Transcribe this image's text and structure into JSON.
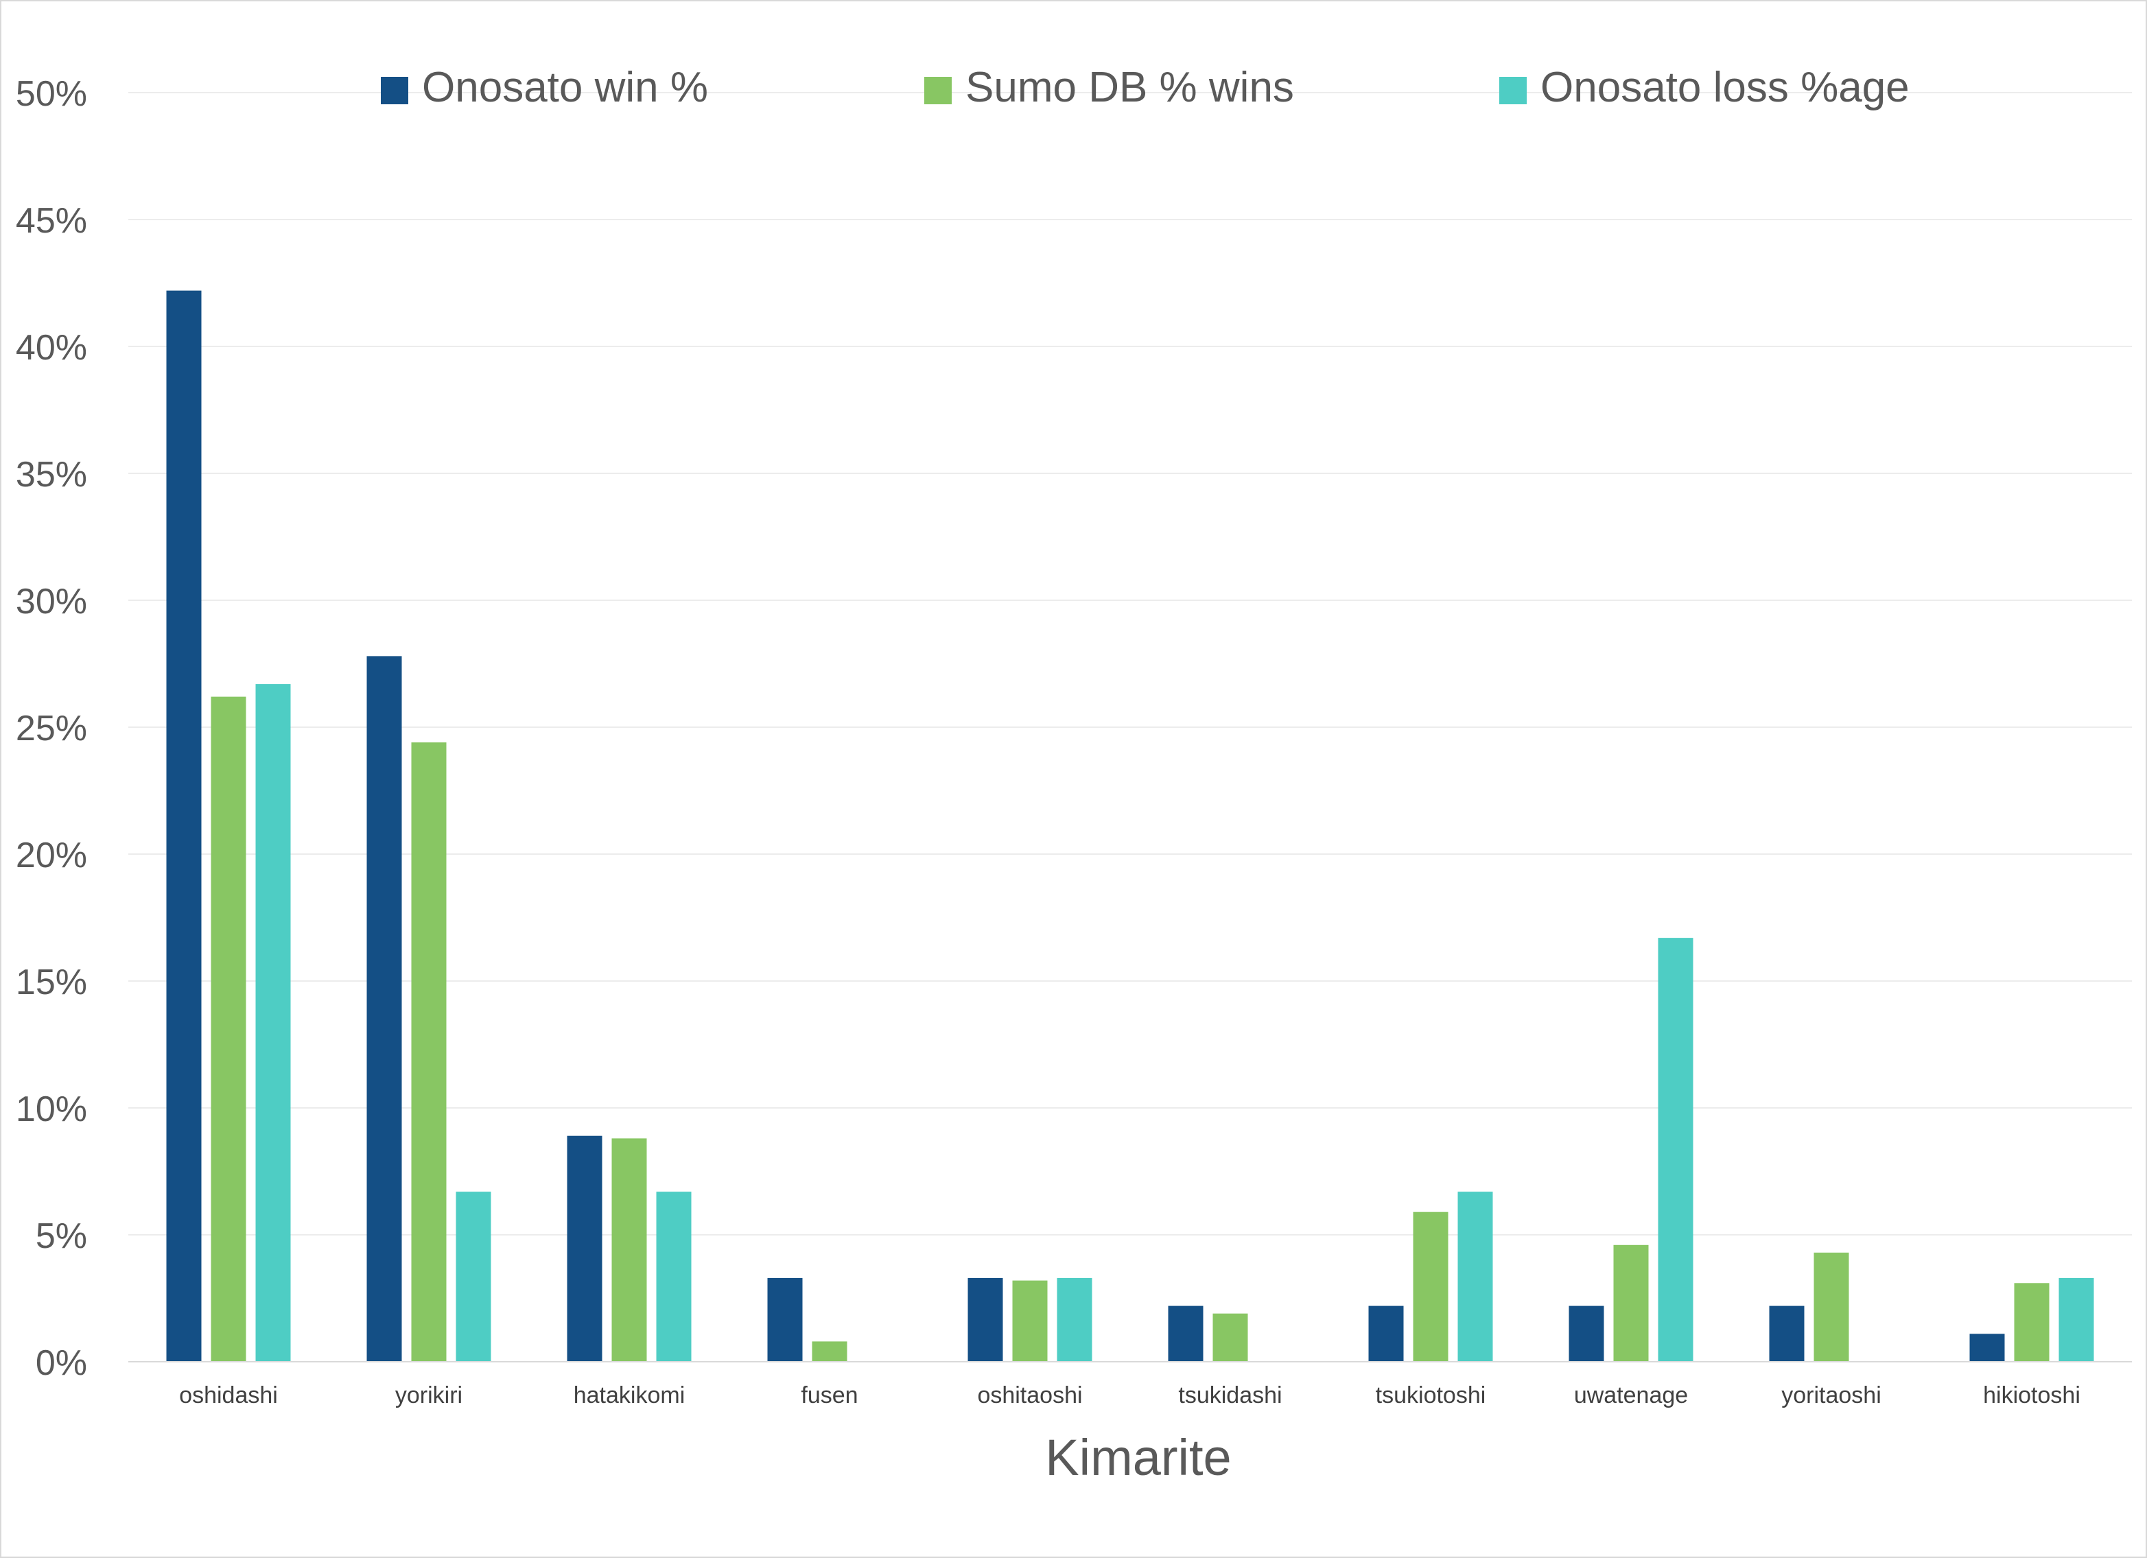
{
  "chart_data": {
    "type": "bar",
    "title": "",
    "xlabel": "Kimarite",
    "ylabel": "",
    "ylim": [
      0,
      50
    ],
    "y_ticks": [
      0,
      5,
      10,
      15,
      20,
      25,
      30,
      35,
      40,
      45,
      50
    ],
    "y_tick_labels": [
      "0%",
      "5%",
      "10%",
      "15%",
      "20%",
      "25%",
      "30%",
      "35%",
      "40%",
      "45%",
      "50%"
    ],
    "value_unit": "%",
    "grid": true,
    "legend_position": "top",
    "categories": [
      "oshidashi",
      "yorikiri",
      "hatakikomi",
      "fusen",
      "oshitaoshi",
      "tsukidashi",
      "tsukiotoshi",
      "uwatenage",
      "yoritaoshi",
      "hikiotoshi"
    ],
    "series": [
      {
        "name": "Onosato win %",
        "color": "#144f85",
        "values": [
          42.2,
          27.8,
          8.9,
          3.3,
          3.3,
          2.2,
          2.2,
          2.2,
          2.2,
          1.1
        ]
      },
      {
        "name": "Sumo DB % wins",
        "color": "#88c663",
        "values": [
          26.2,
          24.4,
          8.8,
          0.8,
          3.2,
          1.9,
          5.9,
          4.6,
          4.3,
          3.1
        ]
      },
      {
        "name": "Onosato loss %age",
        "color": "#4ecdc4",
        "values": [
          26.7,
          6.7,
          6.7,
          0,
          3.3,
          0,
          6.7,
          16.7,
          0,
          3.3
        ]
      }
    ]
  }
}
